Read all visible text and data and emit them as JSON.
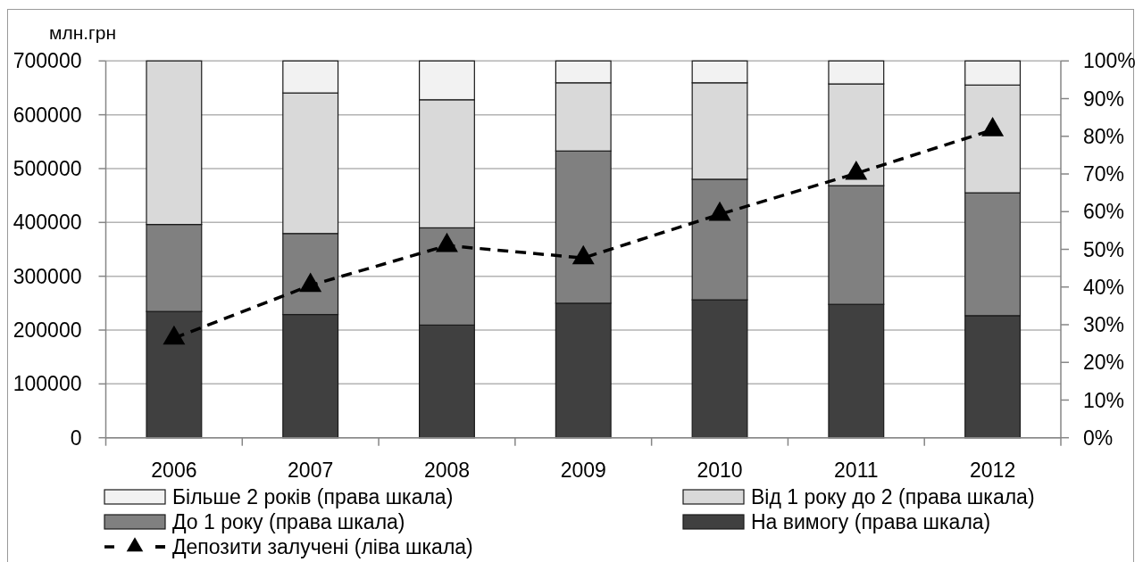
{
  "chart_data": {
    "type": "bar",
    "stacked": true,
    "ylabel": "млн.грн",
    "categories": [
      "2006",
      "2007",
      "2008",
      "2009",
      "2010",
      "2011",
      "2012"
    ],
    "series": [
      {
        "name": "На вимогу (права шкала)",
        "color": "#404040",
        "axis": "y2",
        "values": [
          33.5,
          32.7,
          29.9,
          35.7,
          36.6,
          35.4,
          32.4
        ]
      },
      {
        "name": "До 1 року (права шкала)",
        "color": "#808080",
        "axis": "y2",
        "values": [
          23.1,
          21.5,
          25.8,
          40.4,
          32.0,
          31.5,
          32.6
        ]
      },
      {
        "name": "Від 1 року до 2 (права шкала)",
        "color": "#d9d9d9",
        "axis": "y2",
        "values": [
          43.4,
          37.3,
          34.0,
          18.1,
          25.6,
          27.0,
          28.6
        ]
      },
      {
        "name": "Більше 2 років (права шкала)",
        "color": "#f2f2f2",
        "axis": "y2",
        "values": [
          0,
          8.5,
          10.3,
          5.8,
          5.8,
          6.1,
          6.4
        ]
      },
      {
        "name": "Депозити залучені (ліва шкала)",
        "type": "line",
        "color": "#000000",
        "axis": "y",
        "marker": "triangle",
        "line_style": "dashed",
        "values": [
          185000,
          283000,
          357000,
          334000,
          415000,
          491000,
          572000
        ]
      }
    ],
    "ylim": [
      0,
      700000
    ],
    "yticks": [
      0,
      100000,
      200000,
      300000,
      400000,
      500000,
      600000,
      700000
    ],
    "y2lim": [
      0,
      100
    ],
    "y2ticks": [
      {
        "value": 0,
        "label": "0%"
      },
      {
        "value": 10,
        "label": "10%"
      },
      {
        "value": 20,
        "label": "20%"
      },
      {
        "value": 30,
        "label": "30%"
      },
      {
        "value": 40,
        "label": "40%"
      },
      {
        "value": 50,
        "label": "50%"
      },
      {
        "value": 60,
        "label": "60%"
      },
      {
        "value": 70,
        "label": "70%"
      },
      {
        "value": 80,
        "label": "80%"
      },
      {
        "value": 90,
        "label": "90%"
      },
      {
        "value": 100,
        "label": "100%"
      }
    ],
    "grid": "y",
    "legend": "bottom"
  }
}
